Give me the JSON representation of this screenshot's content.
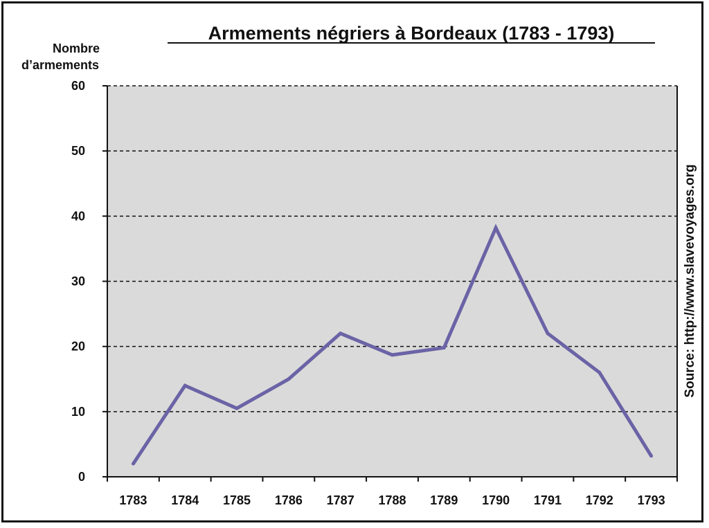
{
  "chart_data": {
    "type": "line",
    "title": "Armements négriers à Bordeaux (1783 - 1793)",
    "ylabel_lines": [
      "Nombre",
      "d’armements"
    ],
    "xlabel": "",
    "categories": [
      "1783",
      "1784",
      "1785",
      "1786",
      "1787",
      "1788",
      "1789",
      "1790",
      "1791",
      "1792",
      "1793"
    ],
    "values": [
      2,
      14,
      10.5,
      15,
      22,
      18.7,
      19.8,
      38.2,
      22,
      16,
      3.2
    ],
    "ylim": [
      0,
      60
    ],
    "yticks": [
      "0",
      "10",
      "20",
      "30",
      "40",
      "50",
      "60"
    ],
    "grid": "horizontal dashed",
    "line_color": "#6b63a6",
    "plot_background": "#dadada",
    "source": "Source: http://www.slavevoyages.org"
  }
}
